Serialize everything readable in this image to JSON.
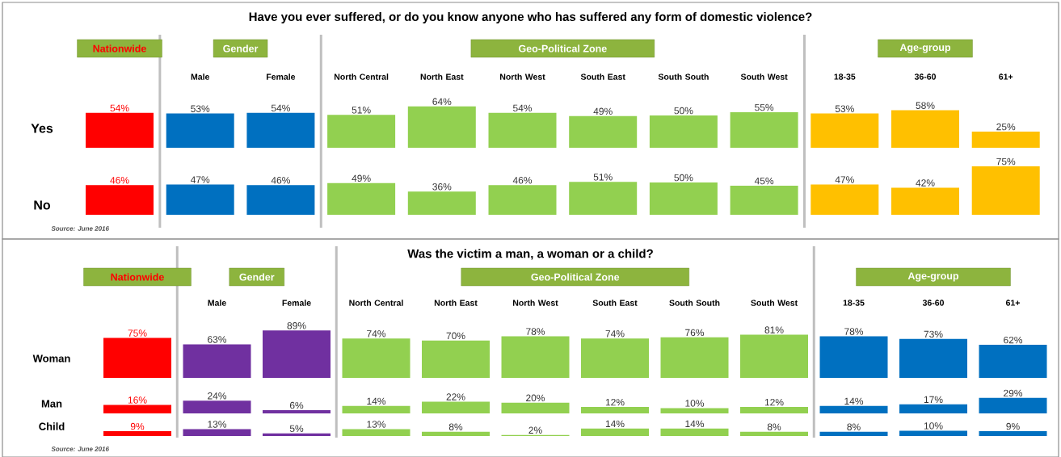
{
  "chart_data": [
    {
      "type": "bar",
      "annotations": [
        "Have you ever suffered, or do you know anyone who has suffered any form of domestic violence?",
        "Nationwide",
        "Gender",
        "Geo-Political Zone",
        "Age-group",
        "Source: June 2016"
      ],
      "categories": [
        null,
        "Male",
        "Female",
        "North Central",
        "North East",
        "North West",
        "South East",
        "South South",
        "South West",
        "18-35",
        "36-60",
        "61+"
      ],
      "series": [
        {
          "name": "Yes",
          "colors": [
            "#ff0000",
            "#0070c0",
            "#0070c0",
            "#92d050",
            "#92d050",
            "#92d050",
            "#92d050",
            "#92d050",
            "#92d050",
            "#ffc000",
            "#ffc000",
            "#ffc000"
          ],
          "values": [
            54,
            53,
            54,
            51,
            64,
            54,
            49,
            50,
            55,
            53,
            58,
            25
          ],
          "value_labels": [
            "54%",
            "53%",
            "54%",
            "51%",
            "64%",
            "54%",
            "49%",
            "50%",
            "55%",
            "53%",
            "58%",
            "25%"
          ]
        }
      ]
    },
    {
      "type": "bar",
      "categories": [
        null,
        null,
        null,
        null,
        null,
        null,
        null,
        null,
        null,
        null,
        null,
        null
      ],
      "series": [
        {
          "name": "No",
          "colors": [
            "#ff0000",
            "#0070c0",
            "#0070c0",
            "#92d050",
            "#92d050",
            "#92d050",
            "#92d050",
            "#92d050",
            "#92d050",
            "#ffc000",
            "#ffc000",
            "#ffc000"
          ],
          "values": [
            46,
            47,
            46,
            49,
            36,
            46,
            51,
            50,
            45,
            47,
            42,
            75
          ],
          "value_labels": [
            "46%",
            "47%",
            "46%",
            "49%",
            "36%",
            "46%",
            "51%",
            "50%",
            "45%",
            "47%",
            "42%",
            "75%"
          ]
        }
      ]
    },
    {
      "type": "bar",
      "annotations": [
        "Was the victim a man, a woman or a child?",
        "Nationwide",
        "Gender",
        "Geo-Political Zone",
        "Age-group",
        "Source: June 2016"
      ],
      "categories": [
        null,
        "Male",
        "Female",
        "North Central",
        "North East",
        "North West",
        "South East",
        "South South",
        "South West",
        "18-35",
        "36-60",
        "61+"
      ],
      "series": [
        {
          "name": "Woman",
          "colors": [
            "#ff0000",
            "#7030a0",
            "#7030a0",
            "#92d050",
            "#92d050",
            "#92d050",
            "#92d050",
            "#92d050",
            "#92d050",
            "#0070c0",
            "#0070c0",
            "#0070c0"
          ],
          "values": [
            75,
            63,
            89,
            74,
            70,
            78,
            74,
            76,
            81,
            78,
            73,
            62
          ],
          "value_labels": [
            "75%",
            "63%",
            "89%",
            "74%",
            "70%",
            "78%",
            "74%",
            "76%",
            "81%",
            "78%",
            "73%",
            "62%"
          ]
        }
      ]
    },
    {
      "type": "bar",
      "categories": [
        null,
        null,
        null,
        null,
        null,
        null,
        null,
        null,
        null,
        null,
        null,
        null
      ],
      "series": [
        {
          "name": "Man",
          "colors": [
            "#ff0000",
            "#7030a0",
            "#7030a0",
            "#92d050",
            "#92d050",
            "#92d050",
            "#92d050",
            "#92d050",
            "#92d050",
            "#0070c0",
            "#0070c0",
            "#0070c0"
          ],
          "values": [
            16,
            24,
            6,
            14,
            22,
            20,
            12,
            10,
            12,
            14,
            17,
            29
          ],
          "value_labels": [
            "16%",
            "24%",
            "6%",
            "14%",
            "22%",
            "20%",
            "12%",
            "10%",
            "12%",
            "14%",
            "17%",
            "29%"
          ]
        }
      ]
    },
    {
      "type": "bar",
      "categories": [
        null,
        null,
        null,
        null,
        null,
        null,
        null,
        null,
        null,
        null,
        null,
        null
      ],
      "series": [
        {
          "name": "Child",
          "colors": [
            "#ff0000",
            "#7030a0",
            "#7030a0",
            "#92d050",
            "#92d050",
            "#92d050",
            "#92d050",
            "#92d050",
            "#92d050",
            "#0070c0",
            "#0070c0",
            "#0070c0"
          ],
          "values": [
            9,
            13,
            5,
            13,
            8,
            2,
            14,
            14,
            8,
            8,
            10,
            9
          ],
          "value_labels": [
            "9%",
            "13%",
            "5%",
            "13%",
            "8%",
            "2%",
            "14%",
            "14%",
            "8%",
            "8%",
            "10%",
            "9%"
          ]
        }
      ]
    }
  ]
}
